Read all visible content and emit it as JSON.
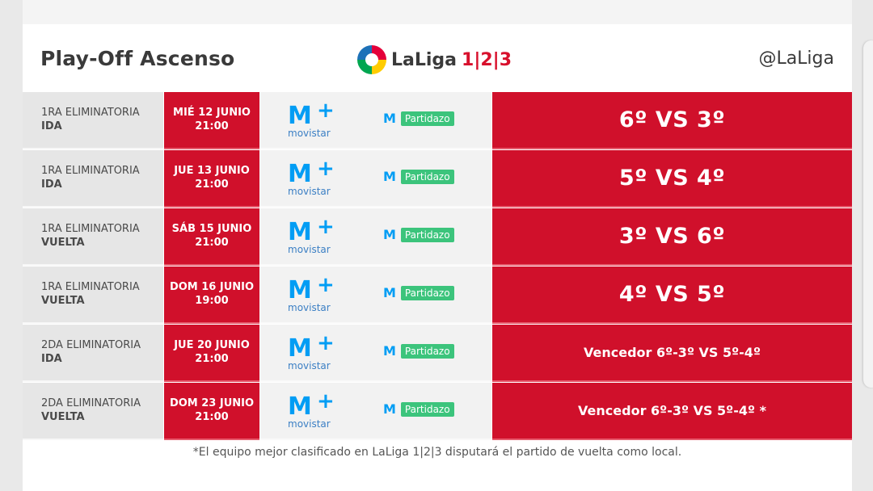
{
  "header": {
    "title": "Play-Off Ascenso",
    "logo_text": "LaLiga",
    "logo_num": "1|2|3",
    "handle": "@LaLiga"
  },
  "rows": [
    {
      "round": "1RA ELIMINATORIA",
      "leg": "IDA",
      "date": "MIÉ 12 JUNIO",
      "time": "21:00",
      "tv1": "movistar",
      "tv2": "Partidazo",
      "match": "6º VS 3º",
      "style": "big"
    },
    {
      "round": "1RA ELIMINATORIA",
      "leg": "IDA",
      "date": "JUE 13 JUNIO",
      "time": "21:00",
      "tv1": "movistar",
      "tv2": "Partidazo",
      "match": "5º VS 4º",
      "style": "big"
    },
    {
      "round": "1RA ELIMINATORIA",
      "leg": "VUELTA",
      "date": "SÁB 15 JUNIO",
      "time": "21:00",
      "tv1": "movistar",
      "tv2": "Partidazo",
      "match": "3º VS 6º",
      "style": "big"
    },
    {
      "round": "1RA ELIMINATORIA",
      "leg": "VUELTA",
      "date": "DOM 16 JUNIO",
      "time": "19:00",
      "tv1": "movistar",
      "tv2": "Partidazo",
      "match": "4º VS 5º",
      "style": "big"
    },
    {
      "round": "2DA ELIMINATORIA",
      "leg": "IDA",
      "date": "JUE 20 JUNIO",
      "time": "21:00",
      "tv1": "movistar",
      "tv2": "Partidazo",
      "match": "Vencedor 6º-3º VS 5º-4º",
      "style": "small"
    },
    {
      "round": "2DA ELIMINATORIA",
      "leg": "VUELTA",
      "date": "DOM 23 JUNIO",
      "time": "21:00",
      "tv1": "movistar",
      "tv2": "Partidazo",
      "match": "Vencedor 6º-3º VS 5º-4º *",
      "style": "small"
    }
  ],
  "footnote": "*El equipo mejor clasificado en LaLiga 1|2|3 disputará el partido de vuelta como local.",
  "colors": {
    "red": "#d0102b",
    "movistar_blue": "#019df4",
    "partidazo_green": "#3cc47c"
  }
}
